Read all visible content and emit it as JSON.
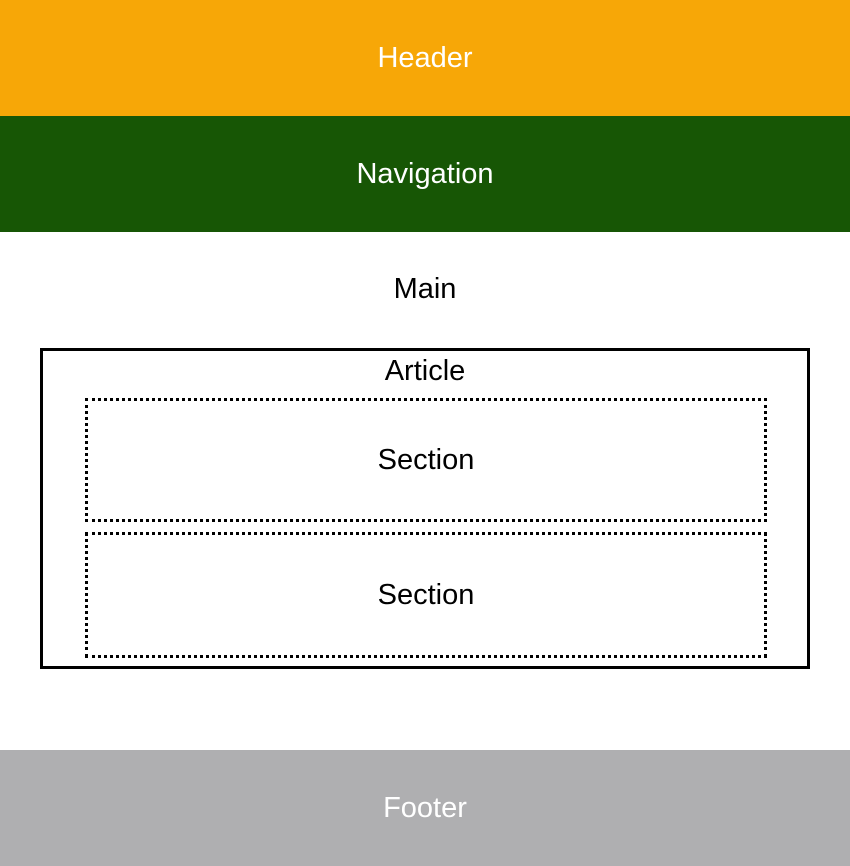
{
  "header": {
    "label": "Header",
    "color": "#f7a707"
  },
  "navigation": {
    "label": "Navigation",
    "color": "#175605"
  },
  "main": {
    "label": "Main",
    "article": {
      "label": "Article",
      "sections": [
        {
          "label": "Section"
        },
        {
          "label": "Section"
        }
      ]
    }
  },
  "footer": {
    "label": "Footer",
    "color": "#afafb1"
  }
}
